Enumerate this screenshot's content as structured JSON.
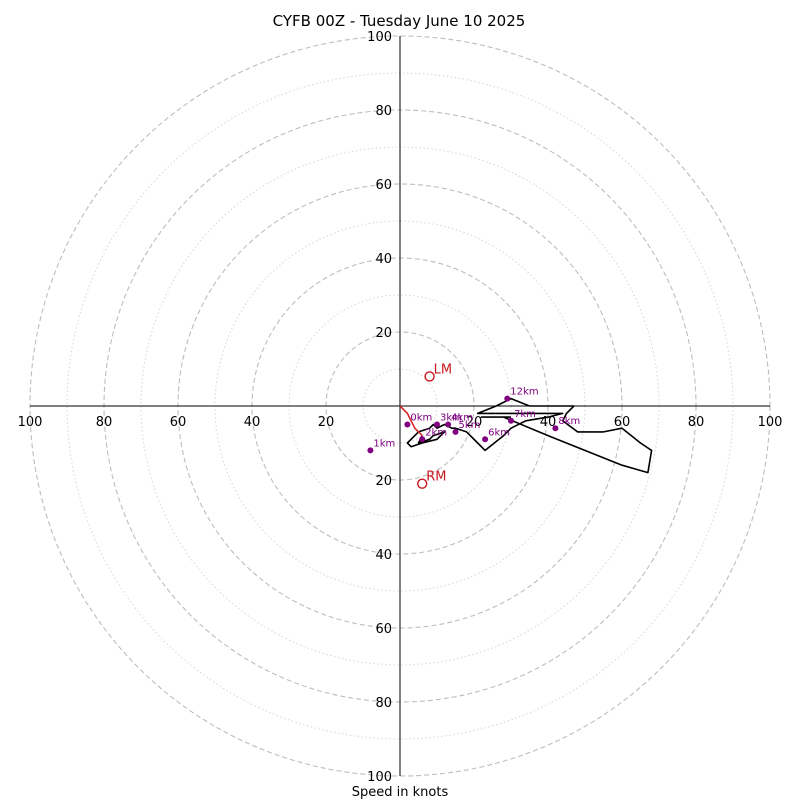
{
  "chart_data": {
    "type": "scatter",
    "title": "CYFB 00Z - Tuesday June 10 2025",
    "xlabel": "Speed in knots",
    "ylabel": "",
    "xlim": [
      -100,
      100
    ],
    "ylim": [
      -100,
      100
    ],
    "rings_major": [
      20,
      40,
      60,
      80,
      100
    ],
    "rings_minor": [
      10,
      30,
      50,
      70,
      90
    ],
    "x_tick_labels": [
      {
        "v": -100,
        "t": "100"
      },
      {
        "v": -80,
        "t": "80"
      },
      {
        "v": -60,
        "t": "60"
      },
      {
        "v": -40,
        "t": "40"
      },
      {
        "v": -20,
        "t": "20"
      },
      {
        "v": 20,
        "t": "20"
      },
      {
        "v": 40,
        "t": "40"
      },
      {
        "v": 60,
        "t": "60"
      },
      {
        "v": 80,
        "t": "80"
      },
      {
        "v": 100,
        "t": "100"
      }
    ],
    "y_tick_labels": [
      {
        "v": 100,
        "t": "100"
      },
      {
        "v": 80,
        "t": "80"
      },
      {
        "v": 60,
        "t": "60"
      },
      {
        "v": 40,
        "t": "40"
      },
      {
        "v": 20,
        "t": "20"
      },
      {
        "v": -20,
        "t": "20"
      },
      {
        "v": -40,
        "t": "40"
      },
      {
        "v": -60,
        "t": "60"
      },
      {
        "v": -80,
        "t": "80"
      },
      {
        "v": -100,
        "t": "100"
      }
    ],
    "trace_low": {
      "color": "#d62728",
      "x": [
        0,
        1,
        2,
        3,
        4,
        6
      ],
      "y": [
        0,
        -1,
        -2,
        -4,
        -6,
        -8
      ]
    },
    "trace": {
      "color": "#000000",
      "x": [
        6,
        5,
        8,
        9,
        12,
        10,
        6,
        3,
        2,
        4,
        5,
        8,
        9,
        10,
        12,
        14,
        15,
        18,
        21,
        23,
        28,
        30,
        34,
        40,
        44,
        38,
        29,
        23,
        21,
        26,
        30,
        35,
        42,
        47,
        45,
        44,
        48,
        55,
        60,
        65,
        68,
        67,
        60,
        40,
        28,
        22,
        30
      ],
      "y": [
        -8,
        -10,
        -9,
        -8,
        -7,
        -9,
        -10,
        -11,
        -10,
        -8,
        -7,
        -6,
        -5,
        -6,
        -5,
        -6,
        -6,
        -7,
        -10,
        -12,
        -8,
        -6,
        -4,
        -3,
        -2,
        -2,
        -2,
        -2,
        -2,
        0,
        2,
        0,
        0,
        0,
        -2,
        -4,
        -7,
        -7,
        -6,
        -10,
        -12,
        -18,
        -16,
        -8,
        -3,
        -3,
        -3
      ]
    },
    "height_points": [
      {
        "label": "0km",
        "x": 2,
        "y": -5
      },
      {
        "label": "1km",
        "x": -8,
        "y": -12
      },
      {
        "label": "2km",
        "x": 6,
        "y": -9
      },
      {
        "label": "3km",
        "x": 10,
        "y": -5
      },
      {
        "label": "4km",
        "x": 13,
        "y": -5
      },
      {
        "label": "5km",
        "x": 15,
        "y": -7
      },
      {
        "label": "6km",
        "x": 23,
        "y": -9
      },
      {
        "label": "7km",
        "x": 30,
        "y": -4
      },
      {
        "label": "8km",
        "x": 42,
        "y": -6
      },
      {
        "label": "12km",
        "x": 29,
        "y": 2
      }
    ],
    "storm_motion": [
      {
        "label": "LM",
        "x": 8,
        "y": 8
      },
      {
        "label": "RM",
        "x": 6,
        "y": -21
      }
    ]
  }
}
